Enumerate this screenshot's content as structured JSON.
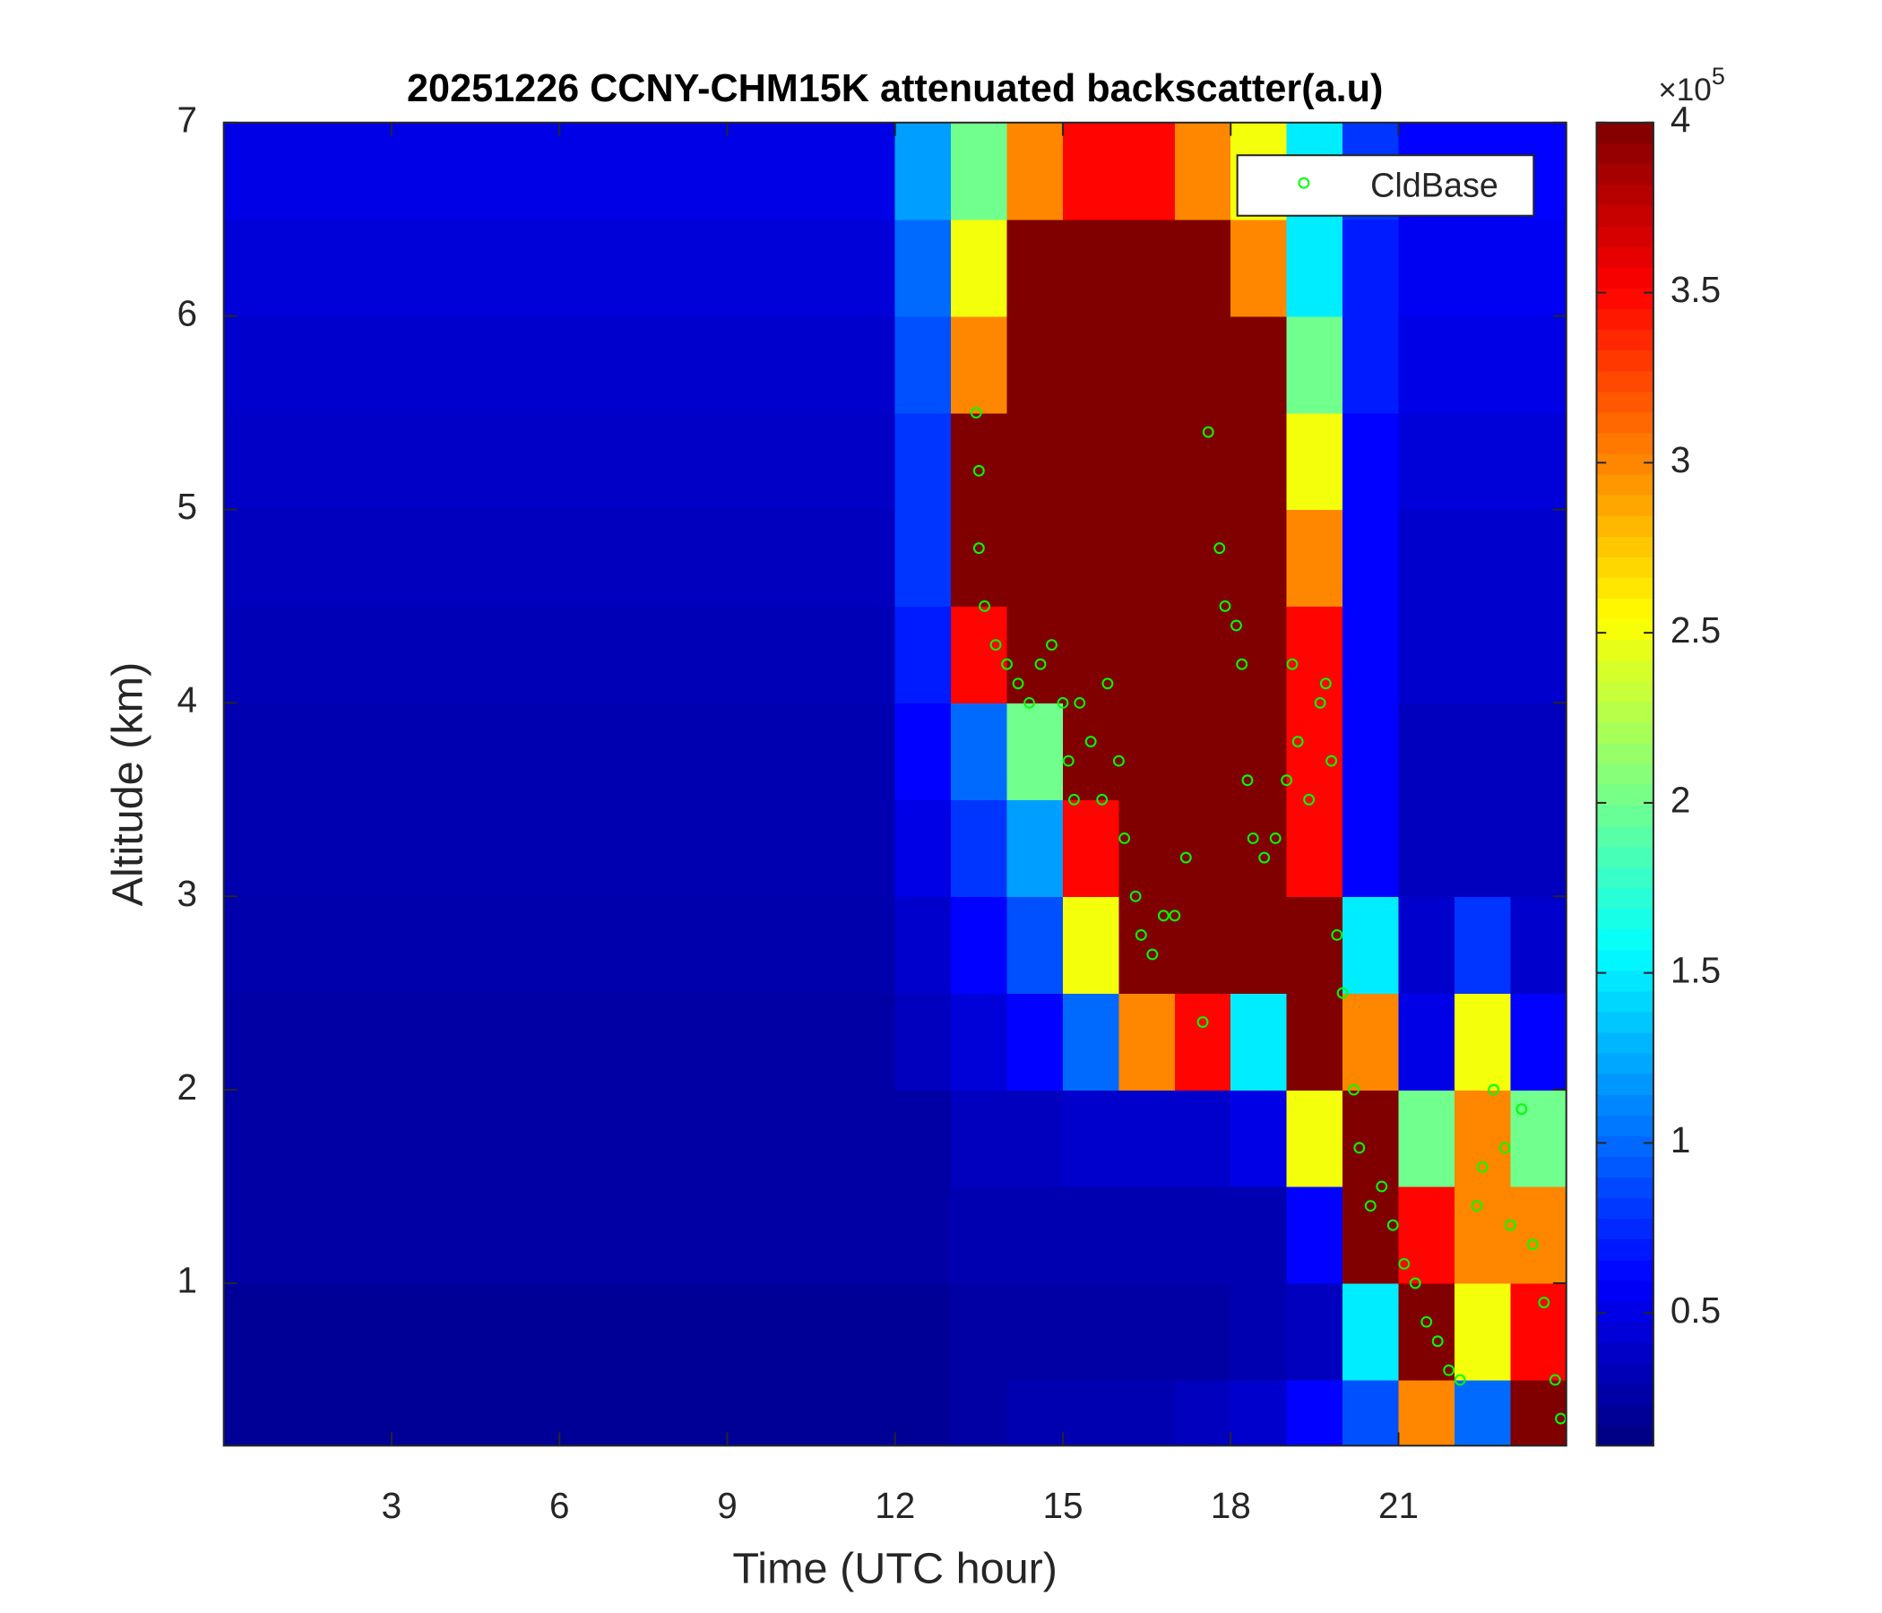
{
  "chart_data": {
    "type": "heatmap",
    "title": "20251226 CCNY-CHM15K attenuated backscatter(a.u)",
    "xlabel": "Time (UTC hour)",
    "ylabel": "Altitude (km)",
    "xlim": [
      0,
      24
    ],
    "ylim": [
      0.16,
      7
    ],
    "xticks": [
      3,
      6,
      9,
      12,
      15,
      18,
      21
    ],
    "yticks": [
      1,
      2,
      3,
      4,
      5,
      6,
      7
    ],
    "colormap": "jet",
    "clim": [
      0.11,
      4
    ],
    "colorbar_ticks": [
      0.5,
      1,
      1.5,
      2,
      2.5,
      3,
      3.5,
      4
    ],
    "colorbar_multiplier": {
      "base": "×10",
      "exponent": "5"
    },
    "x_bins": [
      0,
      1,
      2,
      3,
      4,
      5,
      6,
      7,
      8,
      9,
      10,
      11,
      12,
      13,
      14,
      15,
      16,
      17,
      18,
      19,
      20,
      21,
      22,
      23,
      24
    ],
    "y_bins": [
      0.16,
      0.5,
      1,
      1.5,
      2,
      2.5,
      3,
      3.5,
      4,
      4.5,
      5,
      5.5,
      6,
      6.5,
      7
    ],
    "z": [
      [
        0.2,
        0.2,
        0.2,
        0.2,
        0.2,
        0.2,
        0.2,
        0.2,
        0.2,
        0.2,
        0.2,
        0.2,
        0.2,
        0.25,
        0.3,
        0.3,
        0.3,
        0.35,
        0.4,
        0.6,
        0.9,
        3,
        1,
        4
      ],
      [
        0.2,
        0.2,
        0.2,
        0.2,
        0.2,
        0.2,
        0.2,
        0.2,
        0.2,
        0.2,
        0.2,
        0.2,
        0.2,
        0.25,
        0.25,
        0.25,
        0.25,
        0.25,
        0.3,
        0.35,
        1.5,
        4,
        2.5,
        3.5
      ],
      [
        0.25,
        0.25,
        0.25,
        0.25,
        0.25,
        0.25,
        0.25,
        0.25,
        0.25,
        0.25,
        0.25,
        0.25,
        0.25,
        0.3,
        0.3,
        0.3,
        0.3,
        0.3,
        0.3,
        0.6,
        4,
        3.5,
        3,
        3
      ],
      [
        0.25,
        0.25,
        0.25,
        0.25,
        0.25,
        0.25,
        0.25,
        0.25,
        0.25,
        0.25,
        0.25,
        0.25,
        0.25,
        0.35,
        0.35,
        0.4,
        0.4,
        0.4,
        0.5,
        2.5,
        4,
        2,
        3,
        2
      ],
      [
        0.25,
        0.25,
        0.25,
        0.25,
        0.25,
        0.25,
        0.25,
        0.25,
        0.25,
        0.25,
        0.25,
        0.25,
        0.35,
        0.45,
        0.6,
        1,
        3,
        3.5,
        1.5,
        4,
        3,
        0.5,
        2.5,
        0.6
      ],
      [
        0.28,
        0.28,
        0.28,
        0.28,
        0.28,
        0.28,
        0.28,
        0.28,
        0.28,
        0.28,
        0.28,
        0.28,
        0.4,
        0.6,
        0.9,
        2.5,
        4,
        4,
        4,
        4,
        1.5,
        0.4,
        0.8,
        0.4
      ],
      [
        0.3,
        0.3,
        0.3,
        0.3,
        0.3,
        0.3,
        0.3,
        0.3,
        0.3,
        0.3,
        0.3,
        0.3,
        0.5,
        0.8,
        1.2,
        3.5,
        4,
        4,
        4,
        3.5,
        0.6,
        0.35,
        0.35,
        0.35
      ],
      [
        0.3,
        0.3,
        0.3,
        0.3,
        0.3,
        0.3,
        0.3,
        0.3,
        0.3,
        0.3,
        0.3,
        0.3,
        0.6,
        1,
        2,
        4,
        4,
        4,
        4,
        3.5,
        0.6,
        0.35,
        0.35,
        0.35
      ],
      [
        0.32,
        0.32,
        0.32,
        0.32,
        0.32,
        0.32,
        0.32,
        0.32,
        0.32,
        0.32,
        0.32,
        0.32,
        0.7,
        3.5,
        4,
        4,
        4,
        4,
        4,
        3.5,
        0.6,
        0.4,
        0.4,
        0.4
      ],
      [
        0.35,
        0.35,
        0.35,
        0.35,
        0.35,
        0.35,
        0.35,
        0.35,
        0.35,
        0.35,
        0.35,
        0.35,
        0.8,
        4,
        4,
        4,
        4,
        4,
        4,
        3,
        0.6,
        0.4,
        0.4,
        0.4
      ],
      [
        0.38,
        0.38,
        0.38,
        0.38,
        0.38,
        0.38,
        0.38,
        0.38,
        0.38,
        0.38,
        0.38,
        0.38,
        0.8,
        4,
        4,
        4,
        4,
        4,
        4,
        2.5,
        0.6,
        0.45,
        0.45,
        0.45
      ],
      [
        0.4,
        0.4,
        0.4,
        0.4,
        0.4,
        0.4,
        0.4,
        0.4,
        0.4,
        0.4,
        0.4,
        0.4,
        0.9,
        3,
        4,
        4,
        4,
        4,
        4,
        2,
        0.7,
        0.5,
        0.5,
        0.5
      ],
      [
        0.45,
        0.45,
        0.45,
        0.45,
        0.45,
        0.45,
        0.45,
        0.45,
        0.45,
        0.45,
        0.45,
        0.45,
        1,
        2.5,
        4,
        4,
        4,
        4,
        3,
        1.5,
        0.7,
        0.55,
        0.55,
        0.55
      ],
      [
        0.5,
        0.5,
        0.5,
        0.5,
        0.5,
        0.5,
        0.5,
        0.5,
        0.5,
        0.5,
        0.5,
        0.5,
        1.2,
        2,
        3,
        3.5,
        3.5,
        3,
        2.5,
        1.5,
        0.8,
        0.6,
        0.6,
        0.6
      ]
    ],
    "legend": "upper right",
    "series": [
      {
        "name": "CldBase",
        "type": "scatter",
        "color": "#00ff00",
        "x": [
          13.45,
          13.5,
          13.5,
          13.6,
          13.8,
          14.0,
          14.2,
          14.4,
          14.6,
          14.8,
          15.0,
          15.1,
          15.2,
          15.3,
          15.5,
          15.7,
          15.8,
          16.0,
          16.1,
          16.3,
          16.4,
          16.6,
          16.8,
          17.0,
          17.2,
          17.5,
          17.6,
          17.8,
          17.9,
          18.1,
          18.2,
          18.3,
          18.4,
          18.6,
          18.8,
          19.0,
          19.1,
          19.2,
          19.4,
          19.6,
          19.7,
          19.8,
          19.9,
          20.0,
          20.2,
          20.3,
          20.5,
          20.7,
          20.9,
          21.1,
          21.3,
          21.5,
          21.7,
          21.9,
          22.1,
          22.4,
          22.5,
          22.7,
          22.9,
          23.0,
          23.2,
          23.4,
          23.6,
          23.8,
          23.9
        ],
        "y": [
          5.5,
          5.2,
          4.8,
          4.5,
          4.3,
          4.2,
          4.1,
          4.0,
          4.2,
          4.3,
          4.0,
          3.7,
          3.5,
          4.0,
          3.8,
          3.5,
          4.1,
          3.7,
          3.3,
          3.0,
          2.8,
          2.7,
          2.9,
          2.9,
          3.2,
          2.35,
          5.4,
          4.8,
          4.5,
          4.4,
          4.2,
          3.6,
          3.3,
          3.2,
          3.3,
          3.6,
          4.2,
          3.8,
          3.5,
          4.0,
          4.1,
          3.7,
          2.8,
          2.5,
          2.0,
          1.7,
          1.4,
          1.5,
          1.3,
          1.1,
          1.0,
          0.8,
          0.7,
          0.55,
          0.5,
          1.4,
          1.6,
          2.0,
          1.7,
          1.3,
          1.9,
          1.2,
          0.9,
          0.5,
          0.3
        ]
      }
    ]
  }
}
